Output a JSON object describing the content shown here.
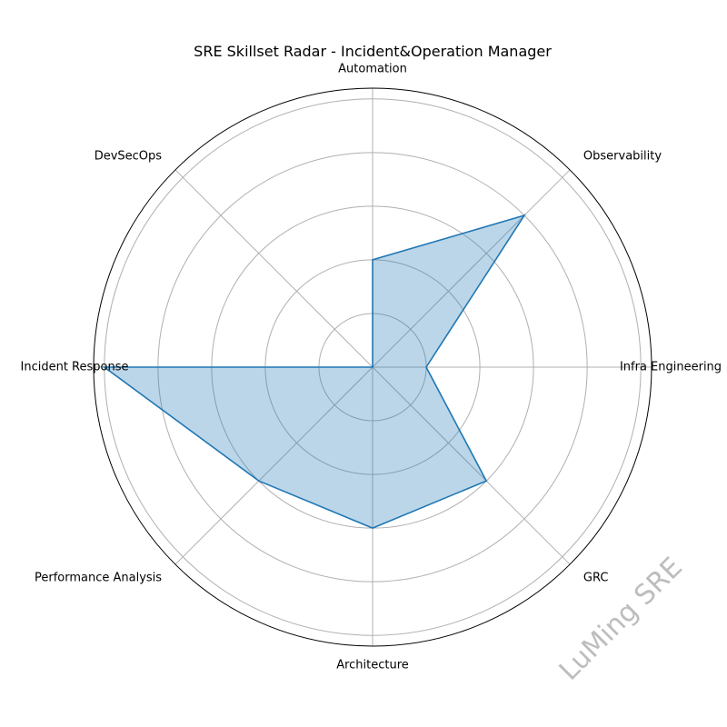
{
  "chart_data": {
    "type": "radar",
    "title": "SRE Skillset Radar - Incident&Operation Manager",
    "categories": [
      "Infra Engineering",
      "Observability",
      "Automation",
      "DevSecOps",
      "Incident Response",
      "Performance Analysis",
      "Architecture",
      "GRC"
    ],
    "values": [
      1,
      4,
      2,
      0,
      5,
      3,
      3,
      3
    ],
    "rlim": [
      0,
      5.2
    ],
    "rticks": [
      1,
      2,
      3,
      4,
      5
    ],
    "grid": true,
    "colors": {
      "line": "#1f77b4",
      "fill": "#1f77b4",
      "grid": "#b0b0b0"
    }
  },
  "watermark": "LuMing SRE"
}
